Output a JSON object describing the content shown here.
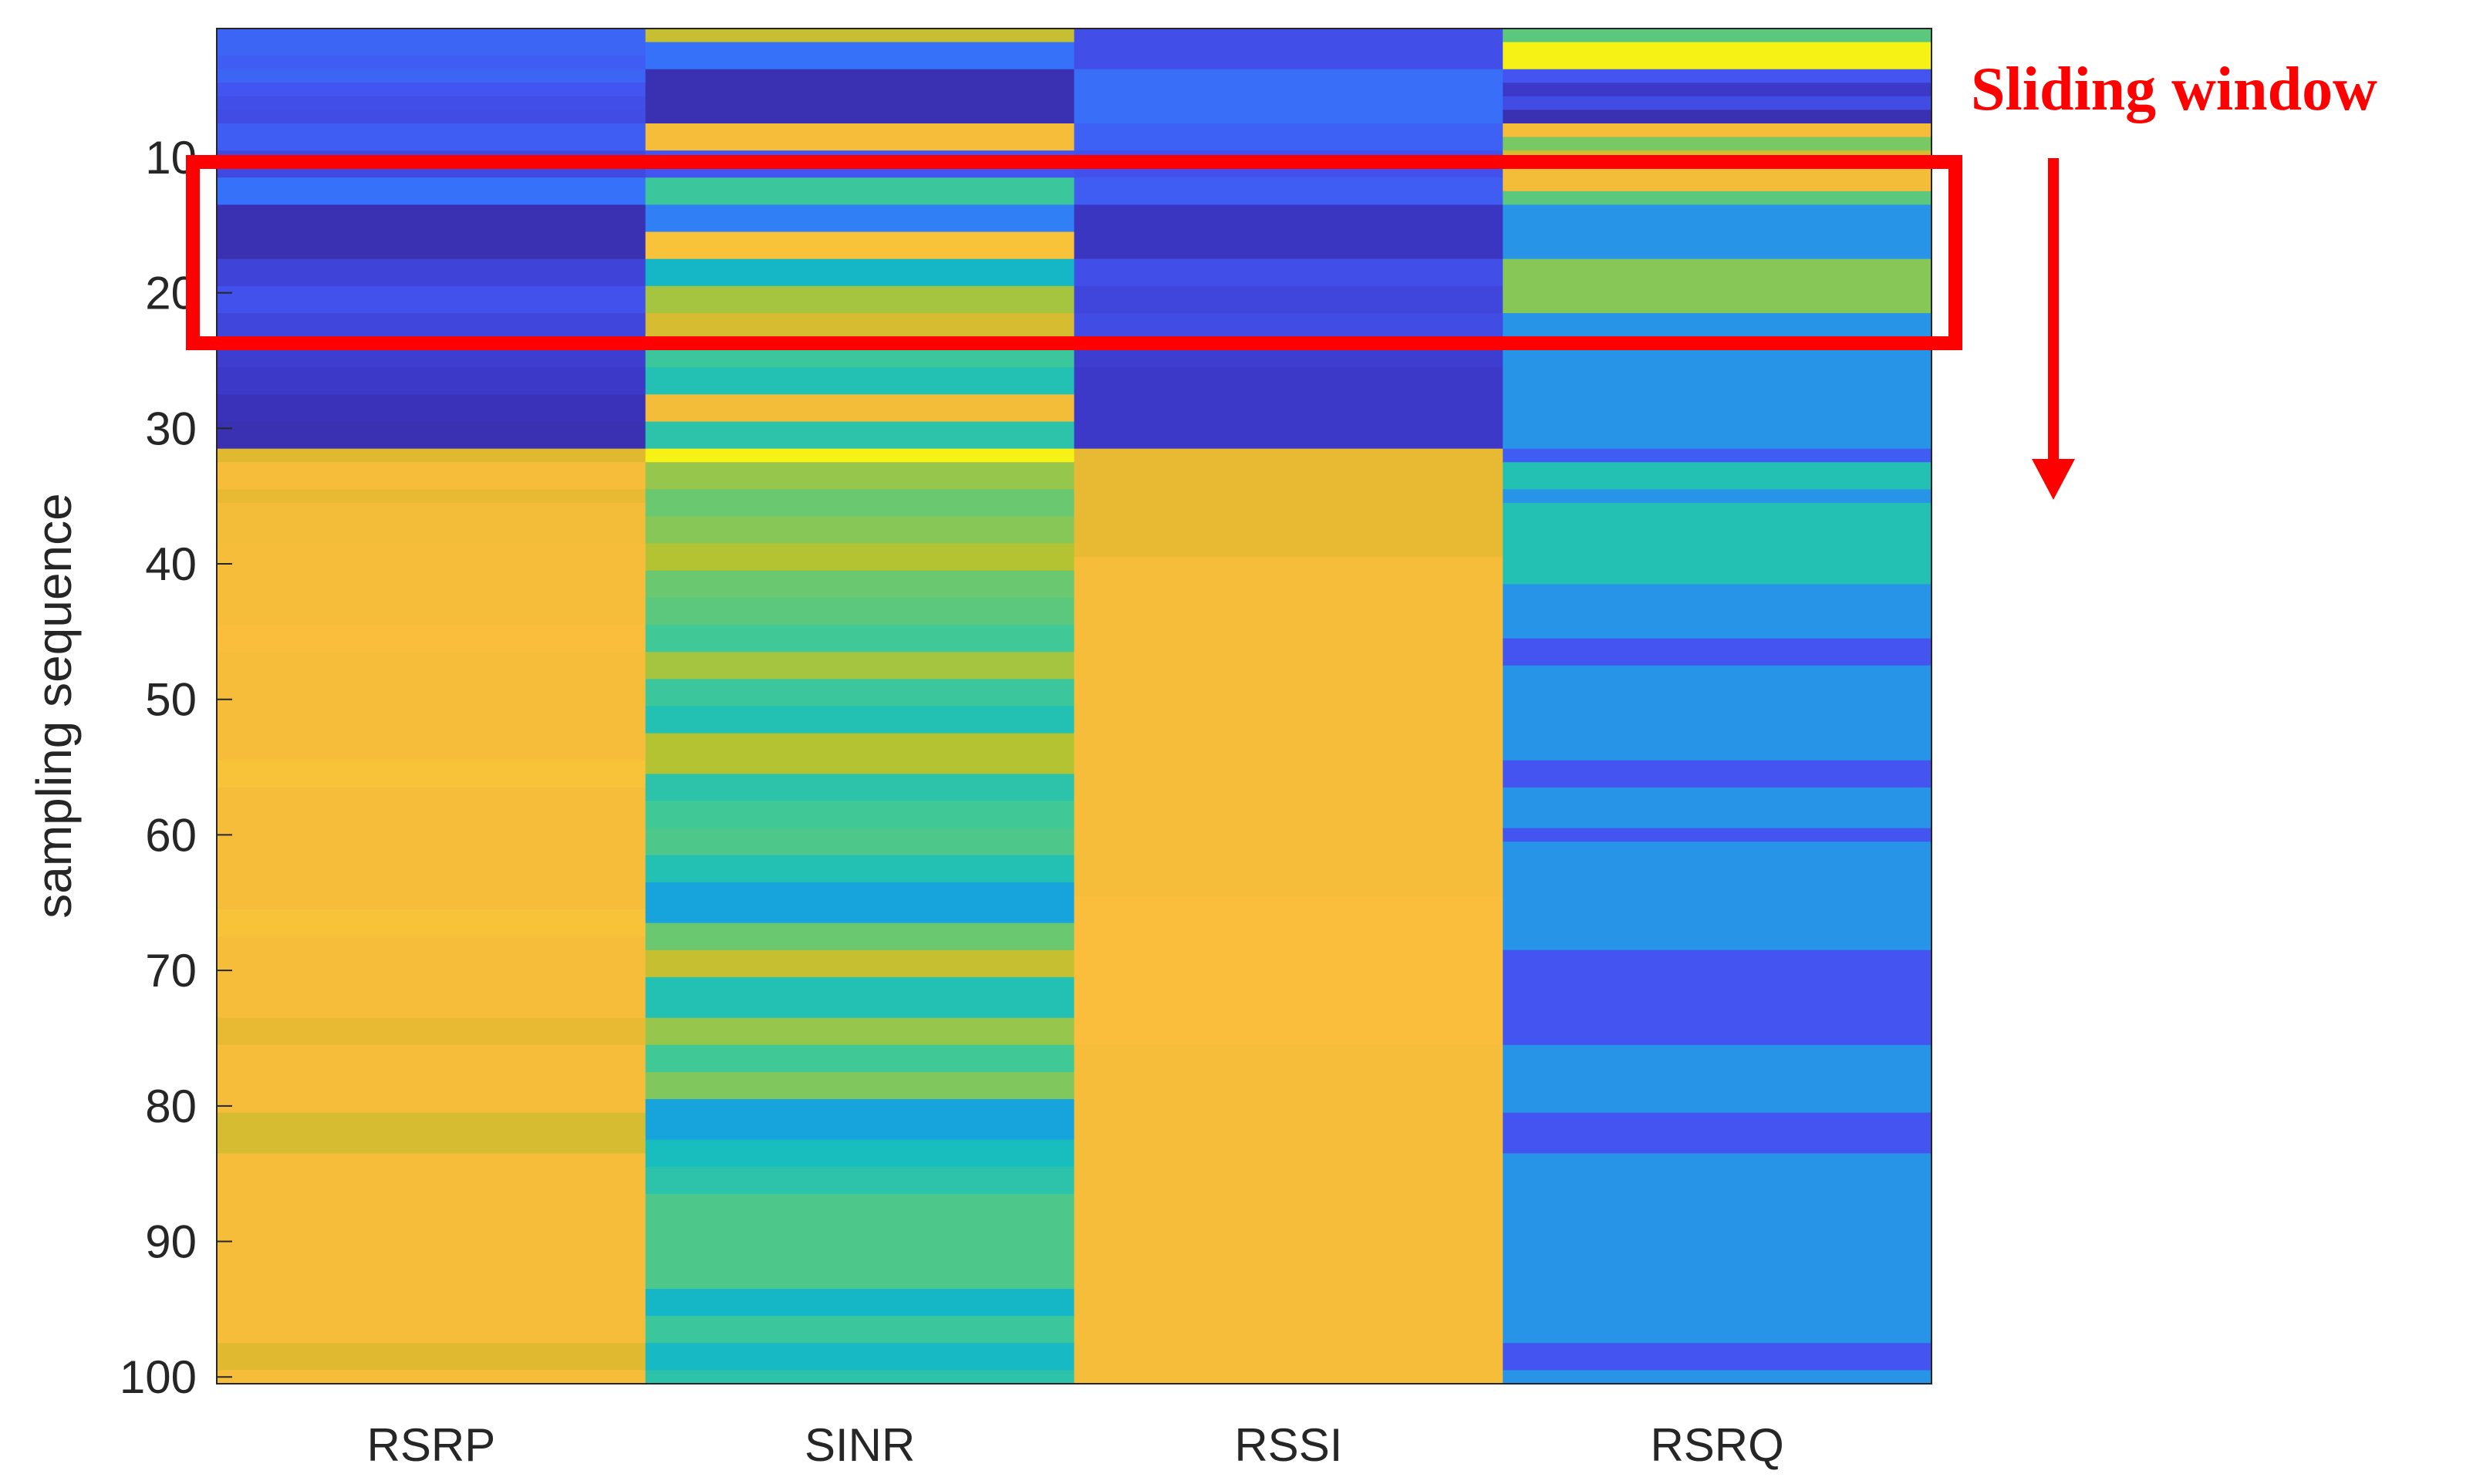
{
  "chart_data": {
    "type": "heatmap",
    "title": "",
    "xlabel": "",
    "ylabel": "sampling sequence",
    "columns": [
      "RSRP",
      "SINR",
      "RSSI",
      "RSRQ"
    ],
    "row_range": [
      1,
      100
    ],
    "yticks": [
      10,
      20,
      30,
      40,
      50,
      60,
      70,
      80,
      90,
      100
    ],
    "colormap": "parula",
    "color_scale": "normalized 0 (dark blue) to 1 (yellow)",
    "rows": {
      "RSRP": [
        [
          1,
          2,
          0.22
        ],
        [
          3,
          3,
          0.2
        ],
        [
          4,
          4,
          0.22
        ],
        [
          5,
          5,
          0.18
        ],
        [
          6,
          6,
          0.16
        ],
        [
          7,
          7,
          0.15
        ],
        [
          8,
          9,
          0.2
        ],
        [
          10,
          11,
          0.14
        ],
        [
          12,
          13,
          0.25
        ],
        [
          14,
          17,
          0.05
        ],
        [
          18,
          19,
          0.12
        ],
        [
          20,
          21,
          0.17
        ],
        [
          22,
          23,
          0.13
        ],
        [
          24,
          25,
          0.1
        ],
        [
          26,
          27,
          0.08
        ],
        [
          28,
          29,
          0.06
        ],
        [
          30,
          31,
          0.05
        ],
        [
          32,
          32,
          0.8
        ],
        [
          33,
          34,
          0.86
        ],
        [
          35,
          35,
          0.82
        ],
        [
          36,
          38,
          0.85
        ],
        [
          39,
          44,
          0.86
        ],
        [
          45,
          46,
          0.87
        ],
        [
          47,
          54,
          0.86
        ],
        [
          55,
          56,
          0.88
        ],
        [
          57,
          65,
          0.86
        ],
        [
          66,
          67,
          0.88
        ],
        [
          68,
          73,
          0.86
        ],
        [
          74,
          75,
          0.82
        ],
        [
          76,
          80,
          0.86
        ],
        [
          81,
          83,
          0.78
        ],
        [
          84,
          97,
          0.86
        ],
        [
          98,
          99,
          0.8
        ],
        [
          100,
          100,
          0.86
        ]
      ],
      "SINR": [
        [
          1,
          1,
          0.75
        ],
        [
          2,
          3,
          0.25
        ],
        [
          4,
          7,
          0.05
        ],
        [
          8,
          9,
          0.86
        ],
        [
          10,
          11,
          0.18
        ],
        [
          12,
          13,
          0.55
        ],
        [
          14,
          15,
          0.28
        ],
        [
          16,
          17,
          0.88
        ],
        [
          18,
          19,
          0.45
        ],
        [
          20,
          21,
          0.7
        ],
        [
          22,
          23,
          0.78
        ],
        [
          24,
          25,
          0.55
        ],
        [
          26,
          27,
          0.5
        ],
        [
          28,
          29,
          0.85
        ],
        [
          30,
          31,
          0.52
        ],
        [
          32,
          32,
          0.98
        ],
        [
          33,
          34,
          0.68
        ],
        [
          35,
          36,
          0.62
        ],
        [
          37,
          38,
          0.66
        ],
        [
          39,
          40,
          0.72
        ],
        [
          41,
          42,
          0.62
        ],
        [
          43,
          44,
          0.6
        ],
        [
          45,
          46,
          0.56
        ],
        [
          47,
          48,
          0.7
        ],
        [
          49,
          50,
          0.55
        ],
        [
          51,
          52,
          0.5
        ],
        [
          53,
          55,
          0.72
        ],
        [
          56,
          57,
          0.52
        ],
        [
          58,
          59,
          0.56
        ],
        [
          60,
          61,
          0.58
        ],
        [
          62,
          63,
          0.5
        ],
        [
          64,
          66,
          0.38
        ],
        [
          67,
          68,
          0.62
        ],
        [
          69,
          70,
          0.75
        ],
        [
          71,
          73,
          0.5
        ],
        [
          74,
          75,
          0.68
        ],
        [
          76,
          77,
          0.56
        ],
        [
          78,
          79,
          0.65
        ],
        [
          80,
          82,
          0.38
        ],
        [
          83,
          84,
          0.48
        ],
        [
          85,
          86,
          0.52
        ],
        [
          87,
          93,
          0.58
        ],
        [
          94,
          95,
          0.45
        ],
        [
          96,
          97,
          0.55
        ],
        [
          98,
          99,
          0.46
        ],
        [
          100,
          100,
          0.52
        ]
      ],
      "RSSI": [
        [
          1,
          3,
          0.16
        ],
        [
          4,
          7,
          0.24
        ],
        [
          8,
          9,
          0.21
        ],
        [
          10,
          11,
          0.17
        ],
        [
          12,
          13,
          0.2
        ],
        [
          14,
          17,
          0.07
        ],
        [
          18,
          19,
          0.16
        ],
        [
          20,
          21,
          0.13
        ],
        [
          22,
          23,
          0.15
        ],
        [
          24,
          25,
          0.1
        ],
        [
          26,
          31,
          0.08
        ],
        [
          32,
          39,
          0.82
        ],
        [
          40,
          64,
          0.86
        ],
        [
          65,
          75,
          0.87
        ],
        [
          76,
          100,
          0.86
        ]
      ],
      "RSRQ": [
        [
          1,
          1,
          0.6
        ],
        [
          2,
          3,
          0.98
        ],
        [
          4,
          4,
          0.18
        ],
        [
          5,
          5,
          0.08
        ],
        [
          6,
          6,
          0.15
        ],
        [
          7,
          7,
          0.05
        ],
        [
          8,
          8,
          0.86
        ],
        [
          9,
          9,
          0.64
        ],
        [
          10,
          10,
          0.78
        ],
        [
          11,
          12,
          0.85
        ],
        [
          13,
          13,
          0.6
        ],
        [
          14,
          17,
          0.33
        ],
        [
          18,
          21,
          0.66
        ],
        [
          22,
          23,
          0.33
        ],
        [
          24,
          31,
          0.33
        ],
        [
          32,
          32,
          0.2
        ],
        [
          33,
          34,
          0.5
        ],
        [
          35,
          35,
          0.33
        ],
        [
          36,
          41,
          0.5
        ],
        [
          42,
          45,
          0.33
        ],
        [
          46,
          47,
          0.18
        ],
        [
          48,
          54,
          0.33
        ],
        [
          55,
          56,
          0.18
        ],
        [
          57,
          59,
          0.33
        ],
        [
          60,
          60,
          0.18
        ],
        [
          61,
          68,
          0.33
        ],
        [
          69,
          75,
          0.18
        ],
        [
          76,
          80,
          0.33
        ],
        [
          81,
          83,
          0.18
        ],
        [
          84,
          97,
          0.33
        ],
        [
          98,
          99,
          0.18
        ],
        [
          100,
          100,
          0.33
        ]
      ]
    },
    "annotations": [
      {
        "type": "rect",
        "label": "sliding window",
        "row_range": [
          10,
          23
        ],
        "color": "#ff0000"
      },
      {
        "type": "arrow",
        "direction": "down",
        "color": "#ff0000"
      },
      {
        "type": "text",
        "text": "Sliding window",
        "color": "#ff0000"
      }
    ]
  }
}
